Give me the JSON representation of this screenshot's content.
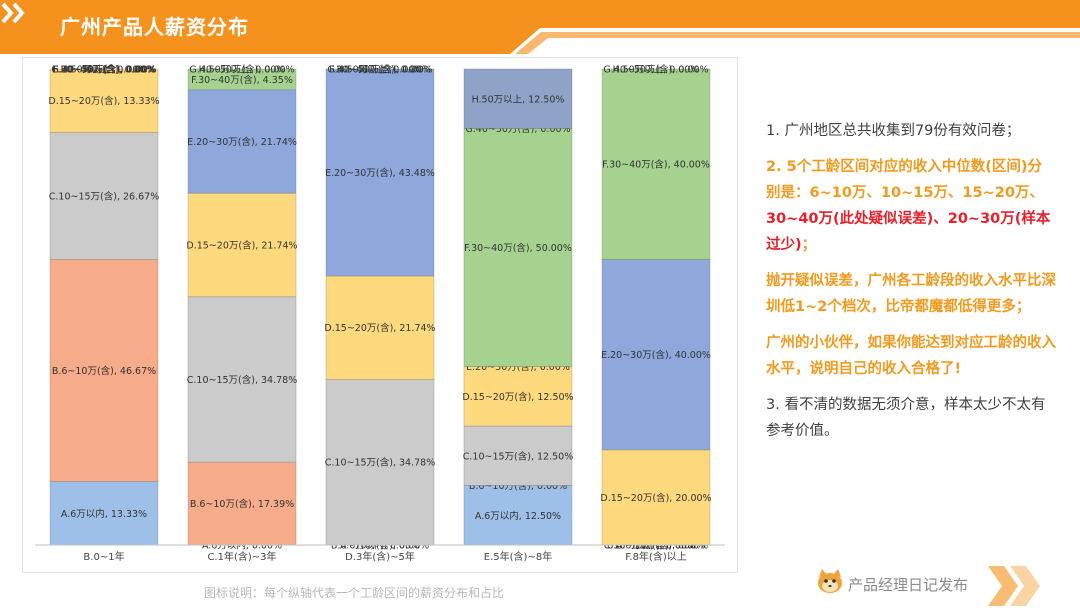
{
  "title": "广州产品人薪资分布",
  "caption": "图标说明：每个纵轴代表一个工龄区间的薪资分布和占比",
  "notes": [
    {
      "class": "c-grey",
      "text": "1. 广州地区总共收集到79份有效问卷；"
    },
    {
      "parts": [
        {
          "class": "c-orange",
          "text": "2. 5个工龄区间对应的收入中位数(区间)分别是：6~10万、10~15万、15~20万、"
        },
        {
          "class": "c-red",
          "text": "30~40万(此处疑似误差)、20~30万(样本过少)"
        },
        {
          "class": "c-orange",
          "text": "；"
        }
      ]
    },
    {
      "class": "c-orange",
      "text": "抛开疑似误差，广州各工龄段的收入水平比深圳低1~2个档次，比帝都魔都低得更多；"
    },
    {
      "class": "c-orange",
      "text": "广州的小伙伴，如果你能达到对应工龄的收入水平，说明自己的收入合格了!"
    },
    {
      "class": "c-grey",
      "text": "3. 看不清的数据无须介意，样本太少不太有参考价值。"
    }
  ],
  "brand": {
    "text": "产品经理日记发布",
    "icon": "cat-logo-icon"
  },
  "colors": {
    "A.6万以内": "#9ec0e8",
    "B.6~10万(含)": "#f6ab8a",
    "C.10~15万(含)": "#cbcbcb",
    "D.15~20万(含)": "#fed97e",
    "E.20~30万(含)": "#8ea8dc",
    "F.30~40万(含)": "#a5d28f",
    "G.40~50万(含)": "#c9a5d8",
    "H.50万以上": "#8fa3c8"
  },
  "chart_data": {
    "type": "bar",
    "stacked": "percent",
    "categories": [
      "B.0~1年",
      "C.1年(含)~3年",
      "D.3年(含)~5年",
      "E.5年(含)~8年",
      "F.8年(含)以上"
    ],
    "series": [
      {
        "name": "A.6万以内",
        "values": [
          13.33,
          0.0,
          0.0,
          12.5,
          0.0
        ]
      },
      {
        "name": "B.6~10万(含)",
        "values": [
          46.67,
          17.39,
          0.0,
          0.0,
          0.0
        ]
      },
      {
        "name": "C.10~15万(含)",
        "values": [
          26.67,
          34.78,
          34.78,
          12.5,
          0.0
        ]
      },
      {
        "name": "D.15~20万(含)",
        "values": [
          13.33,
          21.74,
          21.74,
          12.5,
          20.0
        ]
      },
      {
        "name": "E.20~30万(含)",
        "values": [
          0.0,
          21.74,
          43.48,
          0.0,
          40.0
        ]
      },
      {
        "name": "F.30~40万(含)",
        "values": [
          0.0,
          4.35,
          0.0,
          50.0,
          40.0
        ]
      },
      {
        "name": "G.40~50万(含)",
        "values": [
          0.0,
          0.0,
          0.0,
          0.0,
          0.0
        ]
      },
      {
        "name": "H.50万以上",
        "values": [
          0.0,
          0.0,
          0.0,
          12.5,
          0.0
        ]
      }
    ],
    "label_format": "{name}, {value}%",
    "ylim": [
      0,
      100
    ],
    "grid": false,
    "legend": "none"
  }
}
